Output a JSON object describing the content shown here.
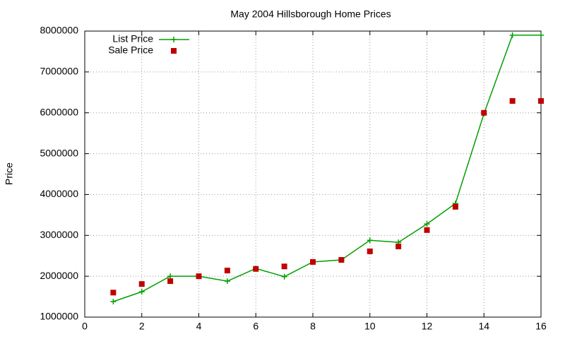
{
  "chart_data": {
    "type": "line",
    "title": "May 2004 Hillsborough Home Prices",
    "y_label": "Price",
    "x": [
      1,
      2,
      3,
      4,
      5,
      6,
      7,
      8,
      9,
      10,
      11,
      12,
      13,
      14,
      15,
      16
    ],
    "series": [
      {
        "name": "List Price",
        "color": "#00a000",
        "style": "linespoints",
        "values": [
          1380000,
          1620000,
          2000000,
          2000000,
          1880000,
          2190000,
          1990000,
          2350000,
          2400000,
          2880000,
          2830000,
          3280000,
          3780000,
          5980000,
          7900000,
          7900000
        ]
      },
      {
        "name": "Sale Price",
        "color": "#c00000",
        "style": "points",
        "values": [
          1600000,
          1810000,
          1880000,
          2000000,
          2140000,
          2180000,
          2240000,
          2350000,
          2400000,
          2610000,
          2730000,
          3130000,
          3700000,
          6000000,
          6290000,
          6290000
        ]
      }
    ],
    "xlim": [
      0,
      16
    ],
    "xticks": [
      0,
      2,
      4,
      6,
      8,
      10,
      12,
      14,
      16
    ],
    "ylim": [
      1000000,
      8000000
    ],
    "yticks": [
      1000000,
      2000000,
      3000000,
      4000000,
      5000000,
      6000000,
      7000000,
      8000000
    ],
    "grid": true,
    "legend": "top-left"
  }
}
